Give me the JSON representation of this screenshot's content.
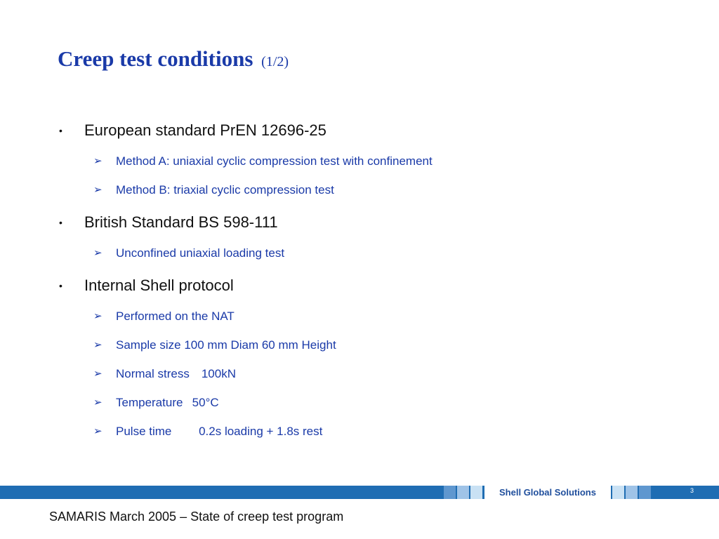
{
  "slide": {
    "title": "Creep test conditions",
    "title_suffix": "(1/2)",
    "bullet_glyph": "•",
    "sub_glyph": "➢",
    "bullets": [
      {
        "text": "European standard PrEN 12696-25",
        "subs": [
          "Method A: uniaxial cyclic compression test with confinement",
          "Method B: triaxial cyclic compression test"
        ]
      },
      {
        "text": "British Standard BS 598-111",
        "subs": [
          "Unconfined uniaxial loading test"
        ]
      },
      {
        "text": "Internal Shell protocol",
        "subs": [
          "Performed on the NAT",
          "Sample size 100 mm Diam 60 mm Height",
          "Normal stress 100kN",
          "Temperature  50°C",
          "Pulse time   0.2s loading + 1.8s rest"
        ]
      }
    ],
    "brand": "Shell Global Solutions",
    "page_number": "3",
    "footer": "SAMARIS March 2005 – State of creep test program"
  },
  "colors": {
    "title": "#1a3aa8",
    "bar": "#1f6db3",
    "sub_text": "#1a3aa8"
  }
}
